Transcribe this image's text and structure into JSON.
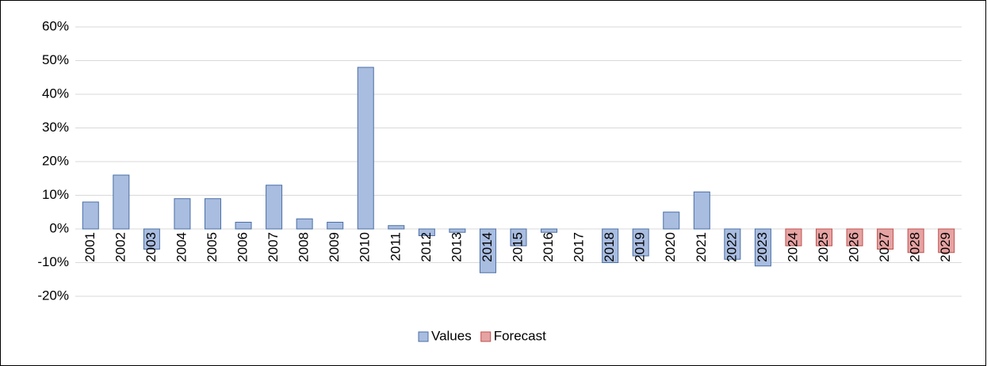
{
  "chart_data": {
    "type": "bar",
    "categories": [
      "2001",
      "2002",
      "2003",
      "2004",
      "2005",
      "2006",
      "2007",
      "2008",
      "2009",
      "2010",
      "2011",
      "2012",
      "2013",
      "2014",
      "2015",
      "2016",
      "2017",
      "2018",
      "2019",
      "2020",
      "2021",
      "2022",
      "2023",
      "2024",
      "2025",
      "2026",
      "2027",
      "2028",
      "2029"
    ],
    "series": [
      {
        "name": "Values",
        "color": "#a9bde0",
        "stroke": "#4a6fa5",
        "values": [
          8,
          16,
          -6,
          9,
          9,
          2,
          13,
          3,
          2,
          48,
          1,
          -2,
          -1,
          -13,
          -5,
          -1,
          0,
          -10,
          -8,
          5,
          11,
          -9,
          -11,
          null,
          null,
          null,
          null,
          null,
          null
        ]
      },
      {
        "name": "Forecast",
        "color": "#e6a3a3",
        "stroke": "#c0504d",
        "values": [
          null,
          null,
          null,
          null,
          null,
          null,
          null,
          null,
          null,
          null,
          null,
          null,
          null,
          null,
          null,
          null,
          null,
          null,
          null,
          null,
          null,
          null,
          null,
          -5,
          -5,
          -5,
          -6,
          -7,
          -7
        ]
      }
    ],
    "ylim": [
      -20,
      60
    ],
    "yticks": [
      {
        "value": -20,
        "label": "-20%"
      },
      {
        "value": -10,
        "label": "-10%"
      },
      {
        "value": 0,
        "label": "0%"
      },
      {
        "value": 10,
        "label": "10%"
      },
      {
        "value": 20,
        "label": "20%"
      },
      {
        "value": 30,
        "label": "30%"
      },
      {
        "value": 40,
        "label": "40%"
      },
      {
        "value": 50,
        "label": "50%"
      },
      {
        "value": 60,
        "label": "60%"
      }
    ],
    "grid": true,
    "legend": "bottom"
  }
}
